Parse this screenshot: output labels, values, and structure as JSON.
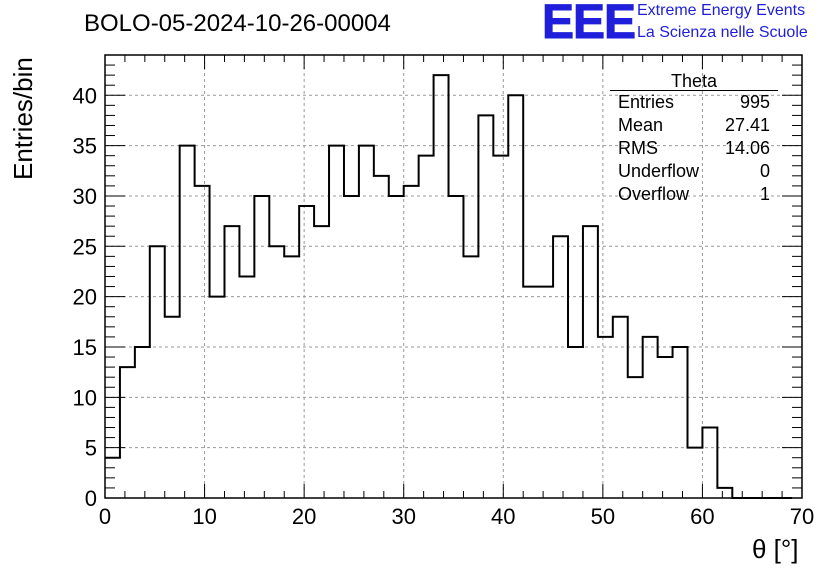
{
  "chart_data": {
    "type": "bar",
    "title": "BOLO-05-2024-10-26-00004",
    "xlabel": "θ [°]",
    "ylabel": "Entries/bin",
    "xlim": [
      0,
      70
    ],
    "ylim": [
      0,
      44
    ],
    "bin_width": 1.5,
    "bin_start": 0,
    "x_ticks": [
      "0",
      "10",
      "20",
      "30",
      "40",
      "50",
      "60",
      "70"
    ],
    "y_ticks": [
      "0",
      "5",
      "10",
      "15",
      "20",
      "25",
      "30",
      "35",
      "40"
    ],
    "grid": true,
    "values": [
      4,
      13,
      15,
      25,
      18,
      35,
      31,
      20,
      27,
      22,
      30,
      25,
      24,
      29,
      27,
      35,
      30,
      35,
      32,
      30,
      31,
      34,
      42,
      30,
      24,
      38,
      34,
      40,
      21,
      21,
      26,
      15,
      27,
      16,
      18,
      12,
      16,
      14,
      15,
      5,
      7,
      1,
      0,
      0,
      0,
      0
    ],
    "legend_placement": "top-right"
  },
  "stats_box": {
    "title": "Theta",
    "rows": [
      {
        "label": "Entries",
        "value": "995"
      },
      {
        "label": "Mean",
        "value": "27.41"
      },
      {
        "label": "RMS",
        "value": "14.06"
      },
      {
        "label": "Underflow",
        "value": "0"
      },
      {
        "label": "Overflow",
        "value": "1"
      }
    ]
  },
  "logo": {
    "mark": "EEE",
    "line1": "Extreme Energy Events",
    "line2": "La Scienza nelle Scuole",
    "color": "#1e1edb"
  }
}
